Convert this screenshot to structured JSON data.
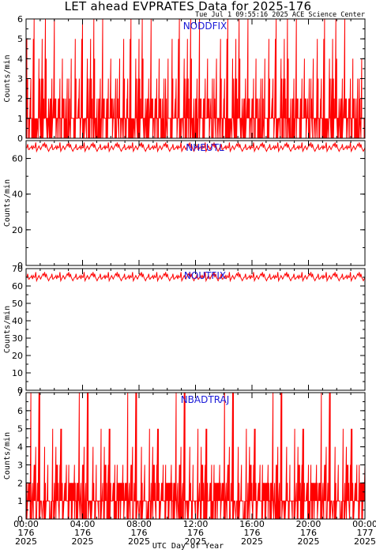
{
  "header": {
    "title": "LET ahead EVPRATES Data for 2025-176",
    "timestamp": "Tue Jul  1 09:55:16 2025 ACE Science Center"
  },
  "colors": {
    "series": "#ff0000",
    "series_label": "#1a1ad8",
    "axes": "#000000"
  },
  "chart_data": [
    {
      "type": "line",
      "series": [
        {
          "name": "NODDFIX",
          "sample_values": [
            1,
            2,
            1,
            0,
            3,
            2,
            1,
            5,
            1,
            2,
            4,
            1,
            0,
            2,
            3,
            1,
            6,
            2,
            1,
            3,
            2,
            0,
            1,
            4,
            2,
            1,
            5,
            2,
            3,
            1,
            0,
            2,
            1,
            6,
            3,
            1,
            2,
            4,
            1,
            2
          ]
        }
      ],
      "ylabel": "Counts/min",
      "ylim": [
        0,
        6
      ],
      "yticks": [
        0,
        1,
        2,
        3,
        4,
        5,
        6
      ]
    },
    {
      "type": "line",
      "series": [
        {
          "name": "NHEUTL",
          "sample_values": [
            66,
            67,
            65,
            68,
            66,
            64,
            67,
            66,
            69,
            65,
            66,
            67,
            65,
            66,
            68,
            64,
            66,
            67,
            65,
            66
          ]
        }
      ],
      "ylabel": "Counts/min",
      "ylim": [
        0,
        70
      ],
      "yticks": [
        0,
        20,
        40,
        60
      ]
    },
    {
      "type": "line",
      "series": [
        {
          "name": "NOUTFIX",
          "sample_values": [
            65,
            66,
            64,
            67,
            65,
            63,
            66,
            65,
            68,
            64,
            65,
            66,
            64,
            65,
            67,
            63,
            65,
            66,
            64,
            65
          ]
        }
      ],
      "ylabel": "Counts/min",
      "ylim": [
        0,
        70
      ],
      "yticks": [
        0,
        10,
        20,
        30,
        40,
        50,
        60,
        70
      ]
    },
    {
      "type": "line",
      "series": [
        {
          "name": "NBADTRAJ",
          "sample_values": [
            3,
            1,
            5,
            2,
            7,
            1,
            3,
            2,
            4,
            1,
            2,
            0,
            1,
            2,
            1,
            0,
            2,
            1,
            2,
            1,
            0,
            1,
            2,
            1,
            1,
            2,
            0,
            1,
            3,
            2,
            1,
            4,
            2,
            3,
            1,
            5,
            2,
            7,
            3,
            2
          ]
        }
      ],
      "ylabel": "Counts/min",
      "ylim": [
        0,
        7
      ],
      "yticks": [
        0,
        1,
        2,
        3,
        4,
        5,
        6,
        7
      ]
    }
  ],
  "x_axis": {
    "title": "UTC Day of Year",
    "ticks": [
      {
        "time": "00:00",
        "doy": "176",
        "year": "2025"
      },
      {
        "time": "04:00",
        "doy": "176",
        "year": "2025"
      },
      {
        "time": "08:00",
        "doy": "176",
        "year": "2025"
      },
      {
        "time": "12:00",
        "doy": "176",
        "year": "2025"
      },
      {
        "time": "16:00",
        "doy": "176",
        "year": "2025"
      },
      {
        "time": "20:00",
        "doy": "176",
        "year": "2025"
      },
      {
        "time": "00:00",
        "doy": "177",
        "year": "2025"
      }
    ],
    "range_hours": [
      0,
      24
    ]
  }
}
